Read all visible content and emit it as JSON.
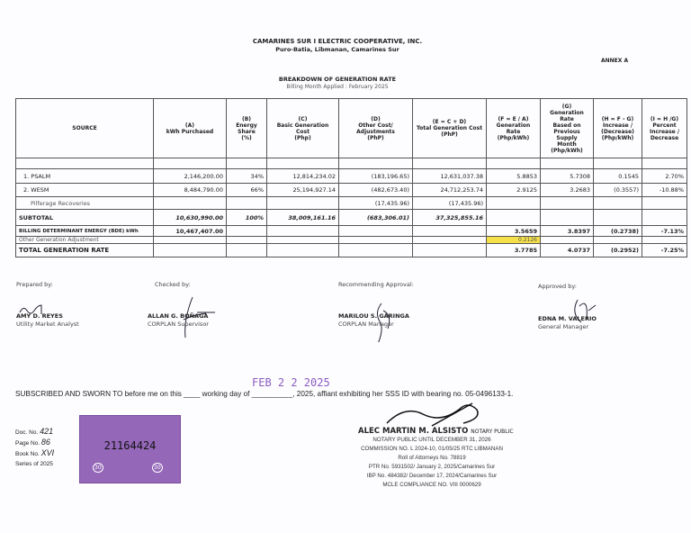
{
  "header": {
    "org": "CAMARINES SUR I ELECTRIC COOPERATIVE, INC.",
    "address": "Puro-Batia, Libmanan, Camarines Sur",
    "annex": "ANNEX A",
    "title": "BREAKDOWN OF GENERATION RATE",
    "billing_month": "Billing Month Applied : February 2025"
  },
  "table": {
    "columns": [
      "SOURCE",
      "(A)\nkWh Purchased",
      "(B)\nEnergy Share\n(%)",
      "(C)\nBasic Generation Cost\n(Php)",
      "(D)\nOther Cost/\nAdjustments\n(PhP)",
      "(E = C + D)\nTotal Generation Cost\n(PhP)",
      "(F = E / A)\nGeneration Rate\n(Php/kWh)",
      "(G)\nGeneration Rate\nBased on\nPrevious Supply\nMonth\n(Php/kWh)",
      "(H = F - G)\nIncrease /\n(Decrease)\n(Php/kWh)",
      "(I = H /G)\nPercent\nIncrease /\nDecrease"
    ],
    "rows": [
      [
        "1. PSALM",
        "2,146,200.00",
        "34%",
        "12,814,234.02",
        "(183,196.65)",
        "12,631,037.38",
        "5.8853",
        "5.7308",
        "0.1545",
        "2.70%"
      ],
      [
        "2. WESM",
        "8,484,790.00",
        "66%",
        "25,194,927.14",
        "(482,673.40)",
        "24,712,253.74",
        "2.9125",
        "3.2683",
        "(0.3557)",
        "-10.88%"
      ],
      [
        "Pilferage Recoveries",
        "",
        "",
        "",
        "(17,435.96)",
        "(17,435.96)",
        "",
        "",
        "",
        ""
      ],
      [
        "SUBTOTAL",
        "10,630,990.00",
        "100%",
        "38,009,161.16",
        "(683,306.01)",
        "37,325,855.16",
        "",
        "",
        "",
        ""
      ],
      [
        "BILLING DETERMINANT ENERGY (BDE) kWh",
        "10,467,407.00",
        "",
        "",
        "",
        "",
        "3.5659",
        "3.8397",
        "(0.2738)",
        "-7.13%"
      ],
      [
        "Other Generation Adjustment",
        "",
        "",
        "",
        "",
        "",
        "0.2126",
        "",
        "",
        ""
      ],
      [
        "TOTAL GENERATION RATE",
        "",
        "",
        "",
        "",
        "",
        "3.7785",
        "4.0737",
        "(0.2952)",
        "-7.25%"
      ]
    ],
    "highlight_color": "#f5e04a"
  },
  "signatories": [
    {
      "label": "Prepared by:",
      "name": "AMY D. REYES",
      "position": "Utility Market Analyst"
    },
    {
      "label": "Checked by:",
      "name": "ALLAN G. BOÑAGA",
      "position": "CORPLAN Supervisor"
    },
    {
      "label": "Recommending Approval:",
      "name": "MARILOU S. GARINGA",
      "position": "CORPLAN Manager"
    },
    {
      "label": "Approved by:",
      "name": "EDNA M. VALERIO",
      "position": "General Manager"
    }
  ],
  "stamp_date": "FEB 2 2 2025",
  "jurat": "SUBSCRIBED AND SWORN TO before me on this ____ working day of __________, 2025, affiant exhibiting her SSS ID with bearing no. 05-0496133-1.",
  "doc": {
    "doc_label": "Doc. No.",
    "doc_val": "421",
    "page_label": "Page No.",
    "page_val": "86",
    "book_label": "Book No.",
    "book_val": "XVI",
    "series": "Series of 2025"
  },
  "doc_stamp": {
    "number": "21164424",
    "value": "30"
  },
  "notary": {
    "name": "ALEC MARTIN M. ALSISTO",
    "title": "NOTARY PUBLIC",
    "lines": [
      "NOTARY PUBLIC UNTIL DECEMBER 31, 2026",
      "COMMISSION NO. L 2024-10, 01/05/25 RTC LIBMANAN",
      "Roll of Attorneys No. 78819",
      "PTR No. 5931502/ January 2, 2025/Camarines Sur",
      "IBP No. 484382/ December 17, 2024/Camarines Sur",
      "MCLE COMPLIANCE NO. VIII 0000629"
    ]
  }
}
